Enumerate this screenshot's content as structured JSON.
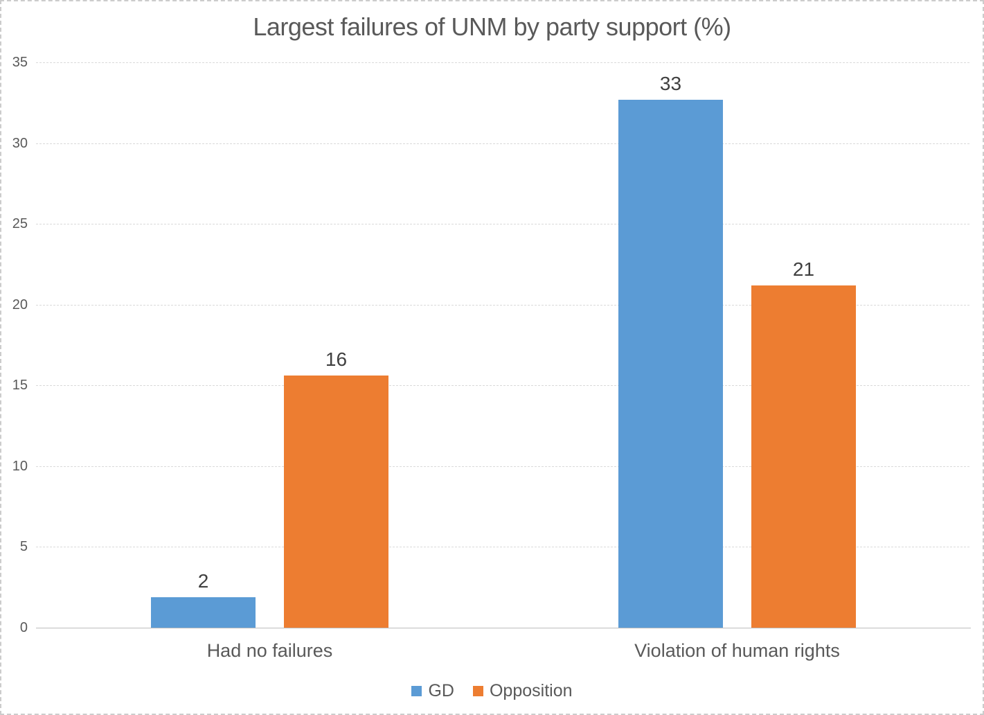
{
  "chart_data": {
    "type": "bar",
    "title": "Largest failures of UNM by party support (%)",
    "categories": [
      "Had no failures",
      "Violation of human rights"
    ],
    "series": [
      {
        "name": "GD",
        "color": "#5B9BD5",
        "values": [
          2,
          33
        ],
        "values_precise": [
          1.9,
          32.7
        ]
      },
      {
        "name": "Opposition",
        "color": "#ED7D31",
        "values": [
          16,
          21
        ],
        "values_precise": [
          15.6,
          21.2
        ]
      }
    ],
    "data_labels": {
      "GD": [
        "2",
        "33"
      ],
      "Opposition": [
        "16",
        "21"
      ]
    },
    "ylim": [
      0,
      35
    ],
    "yticks": [
      0,
      5,
      10,
      15,
      20,
      25,
      30,
      35
    ],
    "grid": true,
    "gridline_color": "#D9D9D9",
    "axis_line_color": "#BDBDBD",
    "text_color": "#595959",
    "data_label_color": "#404040",
    "legend_position": "bottom",
    "xlabel": "",
    "ylabel": ""
  }
}
